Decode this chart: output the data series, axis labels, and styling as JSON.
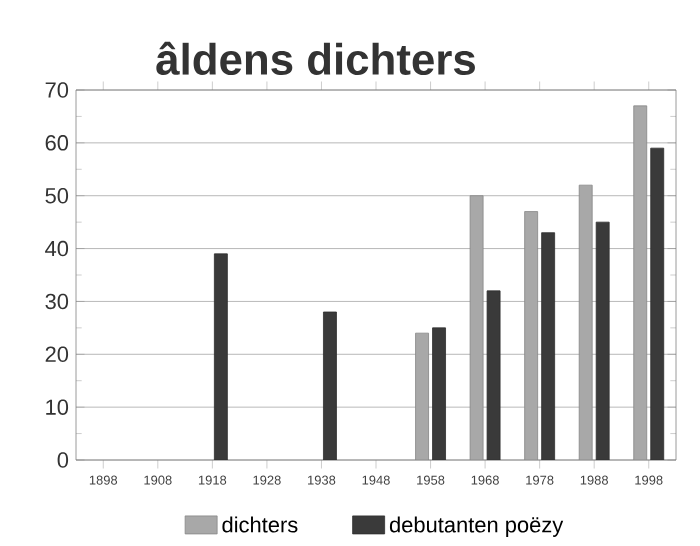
{
  "chart_data": {
    "type": "bar",
    "title": "âldens dichters",
    "categories": [
      "1898",
      "1908",
      "1918",
      "1928",
      "1938",
      "1948",
      "1958",
      "1968",
      "1978",
      "1988",
      "1998"
    ],
    "series": [
      {
        "name": "dichters",
        "color": "#a8a8a8",
        "values": [
          null,
          null,
          null,
          null,
          null,
          null,
          24,
          50,
          47,
          52,
          67
        ]
      },
      {
        "name": "debutanten poëzy",
        "color": "#3a3a3a",
        "values": [
          null,
          null,
          39,
          null,
          28,
          null,
          25,
          32,
          43,
          45,
          59
        ]
      }
    ],
    "ylim": [
      0,
      70
    ],
    "yticks": [
      0,
      10,
      20,
      30,
      40,
      50,
      60,
      70
    ],
    "grid": "y",
    "legend": "bottom"
  }
}
